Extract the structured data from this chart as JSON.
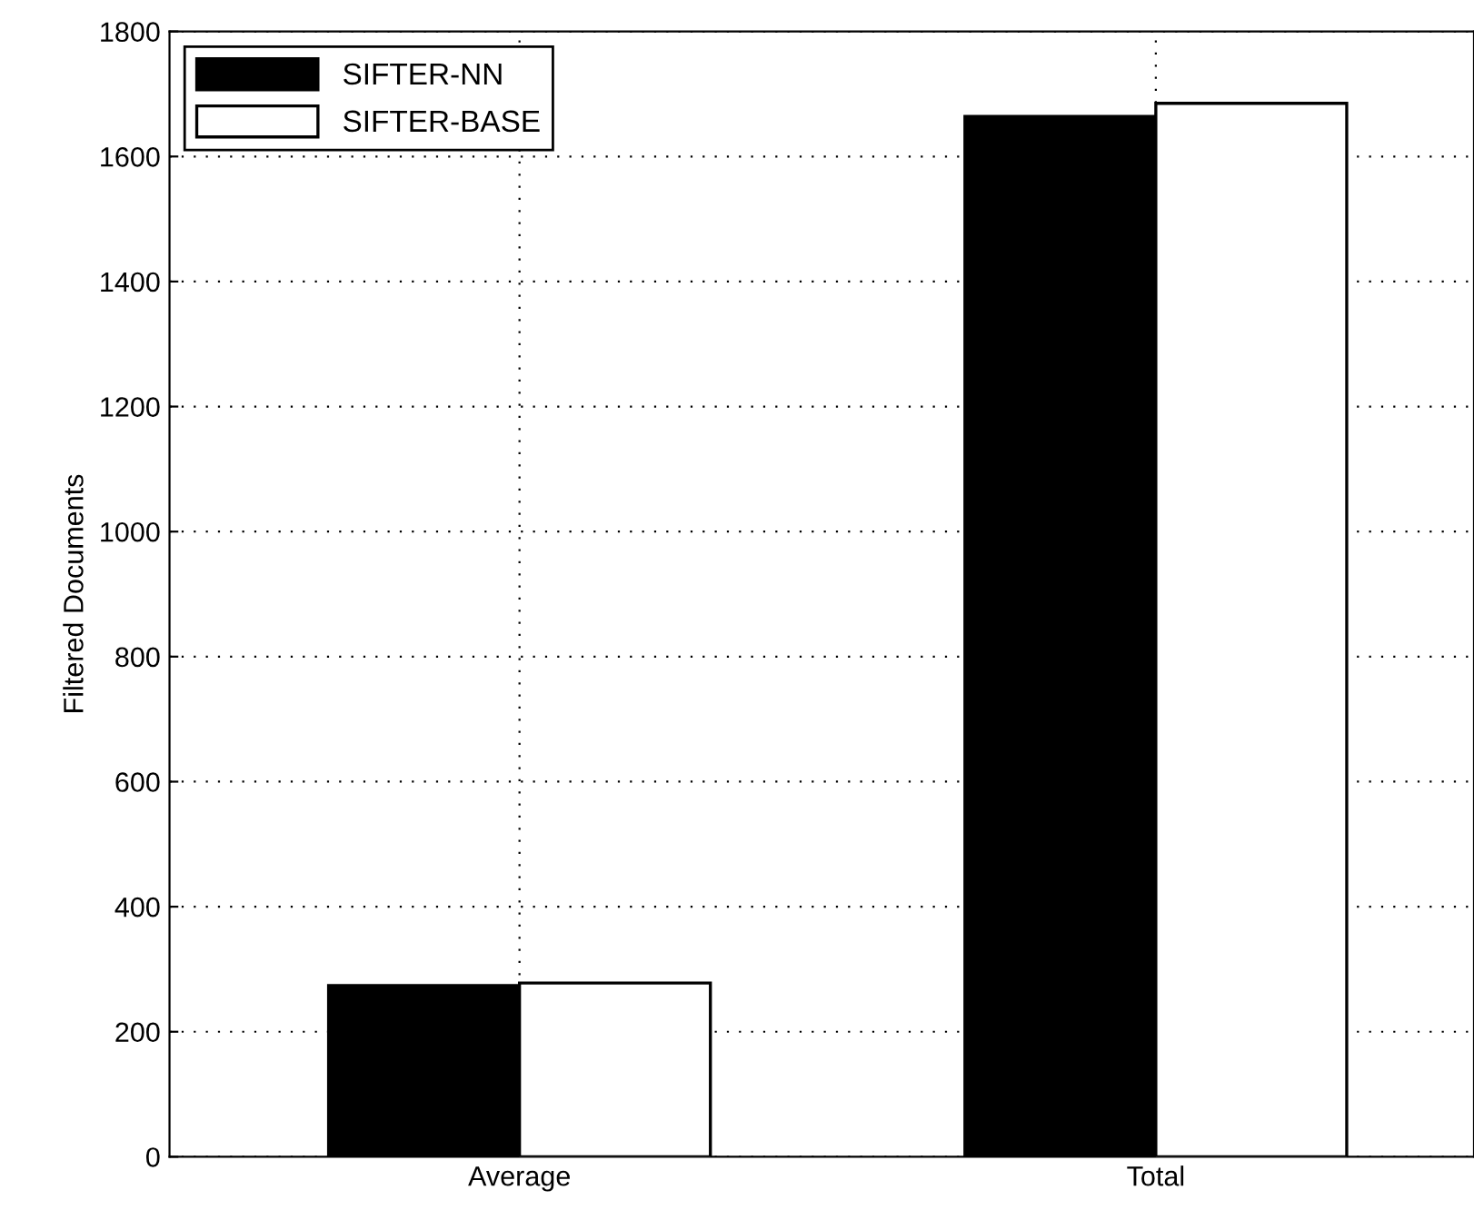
{
  "chart_data": {
    "type": "bar",
    "ylabel": "Filtered Documents",
    "categories": [
      "Average",
      "Total"
    ],
    "series": [
      {
        "name": "SIFTER-NN",
        "color": "#000000",
        "values": [
          274,
          1664
        ]
      },
      {
        "name": "SIFTER-BASE",
        "color": "#ffffff",
        "values": [
          278,
          1685
        ]
      }
    ],
    "ylim": [
      0,
      1800
    ],
    "yticks": [
      0,
      200,
      400,
      600,
      800,
      1000,
      1200,
      1400,
      1600,
      1800
    ],
    "grid": true,
    "legend": "top left"
  }
}
